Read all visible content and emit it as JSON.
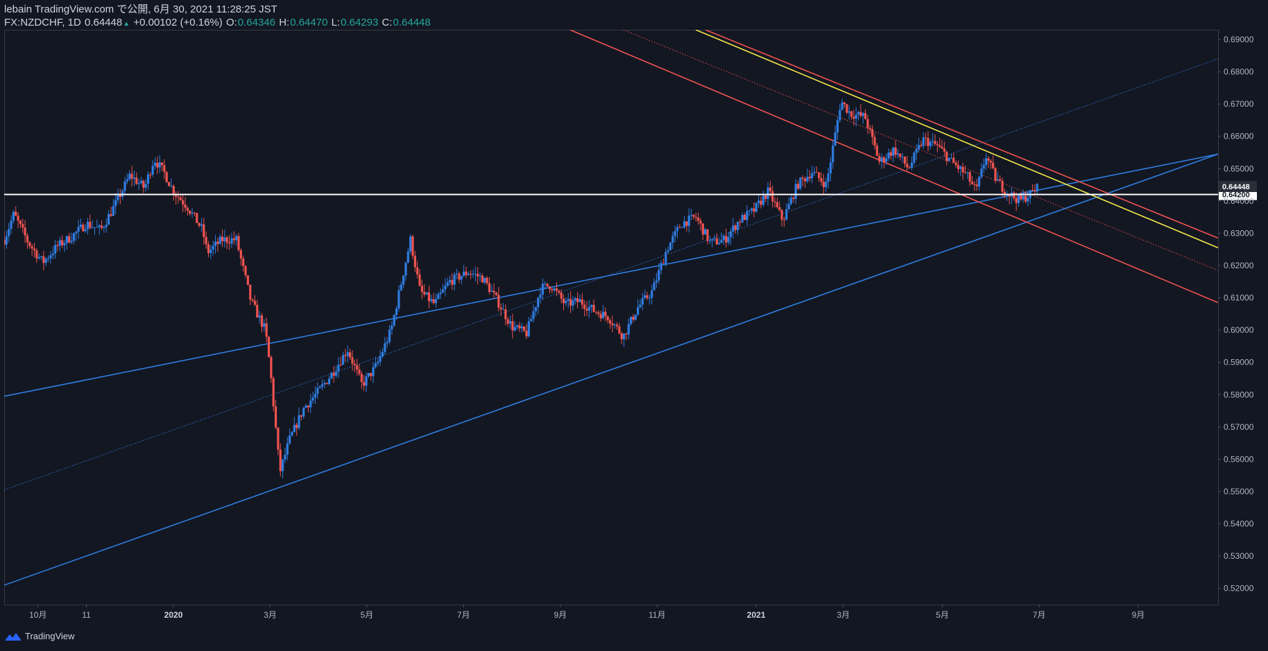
{
  "header": {
    "line1": "lebain TradingView.com で公開, 6月 30, 2021 11:28:25 JST",
    "symbol": "FX:NZDCHF, 1D",
    "price": "0.64448",
    "change": "+0.00102 (+0.16%)",
    "o_label": "O:",
    "o_value": "0.64346",
    "h_label": "H:",
    "h_value": "0.64470",
    "l_label": "L:",
    "l_value": "0.64293",
    "c_label": "C:",
    "c_value": "0.64448"
  },
  "footer": {
    "brand": "TradingView"
  },
  "colors": {
    "background": "#131722",
    "up": "#2f7de1",
    "down": "#ef5350",
    "channel_blue": "#2f7de1",
    "channel_red": "#ef5350",
    "trend_yellow": "#f5e94a",
    "level_white": "#ffffff",
    "price_tag": "#2a2e39"
  },
  "chart_data": {
    "type": "candlestick",
    "title": "FX:NZDCHF, 1D",
    "ylim": [
      0.515,
      0.693
    ],
    "y_ticks": [
      "0.52000",
      "0.53000",
      "0.54000",
      "0.55000",
      "0.56000",
      "0.57000",
      "0.58000",
      "0.59000",
      "0.60000",
      "0.61000",
      "0.62000",
      "0.63000",
      "0.64000",
      "0.65000",
      "0.66000",
      "0.67000",
      "0.68000",
      "0.69000"
    ],
    "y_tick_values": [
      0.52,
      0.53,
      0.54,
      0.55,
      0.56,
      0.57,
      0.58,
      0.59,
      0.6,
      0.61,
      0.62,
      0.63,
      0.64,
      0.65,
      0.66,
      0.67,
      0.68,
      0.69
    ],
    "x_ticks": [
      {
        "label": "10月",
        "t": 1.5,
        "bold": false
      },
      {
        "label": "11",
        "t": 2.5,
        "bold": false
      },
      {
        "label": "2020",
        "t": 4.3,
        "bold": true
      },
      {
        "label": "3月",
        "t": 6.3,
        "bold": false
      },
      {
        "label": "5月",
        "t": 8.3,
        "bold": false
      },
      {
        "label": "7月",
        "t": 10.3,
        "bold": false
      },
      {
        "label": "9月",
        "t": 12.3,
        "bold": false
      },
      {
        "label": "11月",
        "t": 14.3,
        "bold": false
      },
      {
        "label": "2021",
        "t": 16.35,
        "bold": true
      },
      {
        "label": "3月",
        "t": 18.15,
        "bold": false
      },
      {
        "label": "5月",
        "t": 20.2,
        "bold": false
      },
      {
        "label": "7月",
        "t": 22.2,
        "bold": false
      },
      {
        "label": "9月",
        "t": 24.25,
        "bold": false
      }
    ],
    "x_range_months": [
      0.8,
      25.9
    ],
    "horizontal_level": {
      "value": 0.642,
      "label": "0.64200"
    },
    "last_price": {
      "value": 0.64448,
      "label": "0.64448"
    },
    "price_path_months": [
      [
        0.8,
        0.628
      ],
      [
        1.0,
        0.636
      ],
      [
        1.3,
        0.627
      ],
      [
        1.6,
        0.621
      ],
      [
        1.9,
        0.626
      ],
      [
        2.2,
        0.629
      ],
      [
        2.5,
        0.633
      ],
      [
        2.8,
        0.631
      ],
      [
        3.1,
        0.639
      ],
      [
        3.4,
        0.648
      ],
      [
        3.7,
        0.644
      ],
      [
        3.9,
        0.653
      ],
      [
        4.1,
        0.649
      ],
      [
        4.3,
        0.643
      ],
      [
        4.6,
        0.638
      ],
      [
        4.9,
        0.631
      ],
      [
        5.0,
        0.624
      ],
      [
        5.3,
        0.628
      ],
      [
        5.6,
        0.628
      ],
      [
        5.9,
        0.609
      ],
      [
        6.2,
        0.6
      ],
      [
        6.3,
        0.588
      ],
      [
        6.5,
        0.556
      ],
      [
        6.7,
        0.566
      ],
      [
        7.0,
        0.576
      ],
      [
        7.3,
        0.581
      ],
      [
        7.6,
        0.587
      ],
      [
        7.9,
        0.594
      ],
      [
        8.2,
        0.583
      ],
      [
        8.5,
        0.589
      ],
      [
        8.8,
        0.6
      ],
      [
        9.0,
        0.614
      ],
      [
        9.2,
        0.628
      ],
      [
        9.4,
        0.612
      ],
      [
        9.7,
        0.608
      ],
      [
        10.0,
        0.615
      ],
      [
        10.4,
        0.618
      ],
      [
        10.7,
        0.616
      ],
      [
        11.0,
        0.609
      ],
      [
        11.3,
        0.601
      ],
      [
        11.6,
        0.599
      ],
      [
        11.9,
        0.613
      ],
      [
        12.1,
        0.614
      ],
      [
        12.4,
        0.608
      ],
      [
        12.7,
        0.609
      ],
      [
        13.0,
        0.606
      ],
      [
        13.3,
        0.604
      ],
      [
        13.6,
        0.598
      ],
      [
        13.9,
        0.607
      ],
      [
        14.2,
        0.612
      ],
      [
        14.5,
        0.625
      ],
      [
        14.8,
        0.633
      ],
      [
        15.1,
        0.635
      ],
      [
        15.4,
        0.627
      ],
      [
        15.7,
        0.628
      ],
      [
        16.0,
        0.634
      ],
      [
        16.3,
        0.637
      ],
      [
        16.6,
        0.643
      ],
      [
        16.9,
        0.634
      ],
      [
        17.2,
        0.645
      ],
      [
        17.5,
        0.649
      ],
      [
        17.8,
        0.645
      ],
      [
        18.0,
        0.662
      ],
      [
        18.1,
        0.671
      ],
      [
        18.3,
        0.667
      ],
      [
        18.6,
        0.666
      ],
      [
        18.9,
        0.652
      ],
      [
        19.2,
        0.656
      ],
      [
        19.5,
        0.65
      ],
      [
        19.8,
        0.659
      ],
      [
        20.1,
        0.657
      ],
      [
        20.4,
        0.652
      ],
      [
        20.7,
        0.648
      ],
      [
        20.9,
        0.643
      ],
      [
        21.1,
        0.654
      ],
      [
        21.3,
        0.647
      ],
      [
        21.5,
        0.643
      ],
      [
        21.8,
        0.64
      ],
      [
        22.0,
        0.642
      ],
      [
        22.2,
        0.6445
      ]
    ],
    "drawings": [
      {
        "name": "blue-channel-upper",
        "style": "solid",
        "color": "#2f7de1",
        "p1": [
          0.8,
          0.5795
        ],
        "p2": [
          25.9,
          0.6545
        ]
      },
      {
        "name": "blue-channel-mid",
        "style": "dotted",
        "color": "#2f7de1",
        "p1": [
          0.8,
          0.5505
        ],
        "p2": [
          25.9,
          0.684
        ]
      },
      {
        "name": "blue-channel-lower",
        "style": "solid",
        "color": "#2f7de1",
        "p1": [
          0.8,
          0.521
        ],
        "p2": [
          25.9,
          0.6545
        ]
      },
      {
        "name": "red-channel-upper",
        "style": "solid",
        "color": "#ef5350",
        "p1": [
          15.3,
          0.693
        ],
        "p2": [
          25.9,
          0.6285
        ]
      },
      {
        "name": "red-channel-mid",
        "style": "dotted",
        "color": "#ef5350",
        "p1": [
          13.6,
          0.693
        ],
        "p2": [
          25.9,
          0.6185
        ]
      },
      {
        "name": "red-channel-lower",
        "style": "solid",
        "color": "#ef5350",
        "p1": [
          12.5,
          0.693
        ],
        "p2": [
          25.9,
          0.6085
        ]
      },
      {
        "name": "yellow-trendline",
        "style": "solid",
        "color": "#f5e94a",
        "p1": [
          15.1,
          0.693
        ],
        "p2": [
          25.9,
          0.6255
        ]
      }
    ]
  }
}
